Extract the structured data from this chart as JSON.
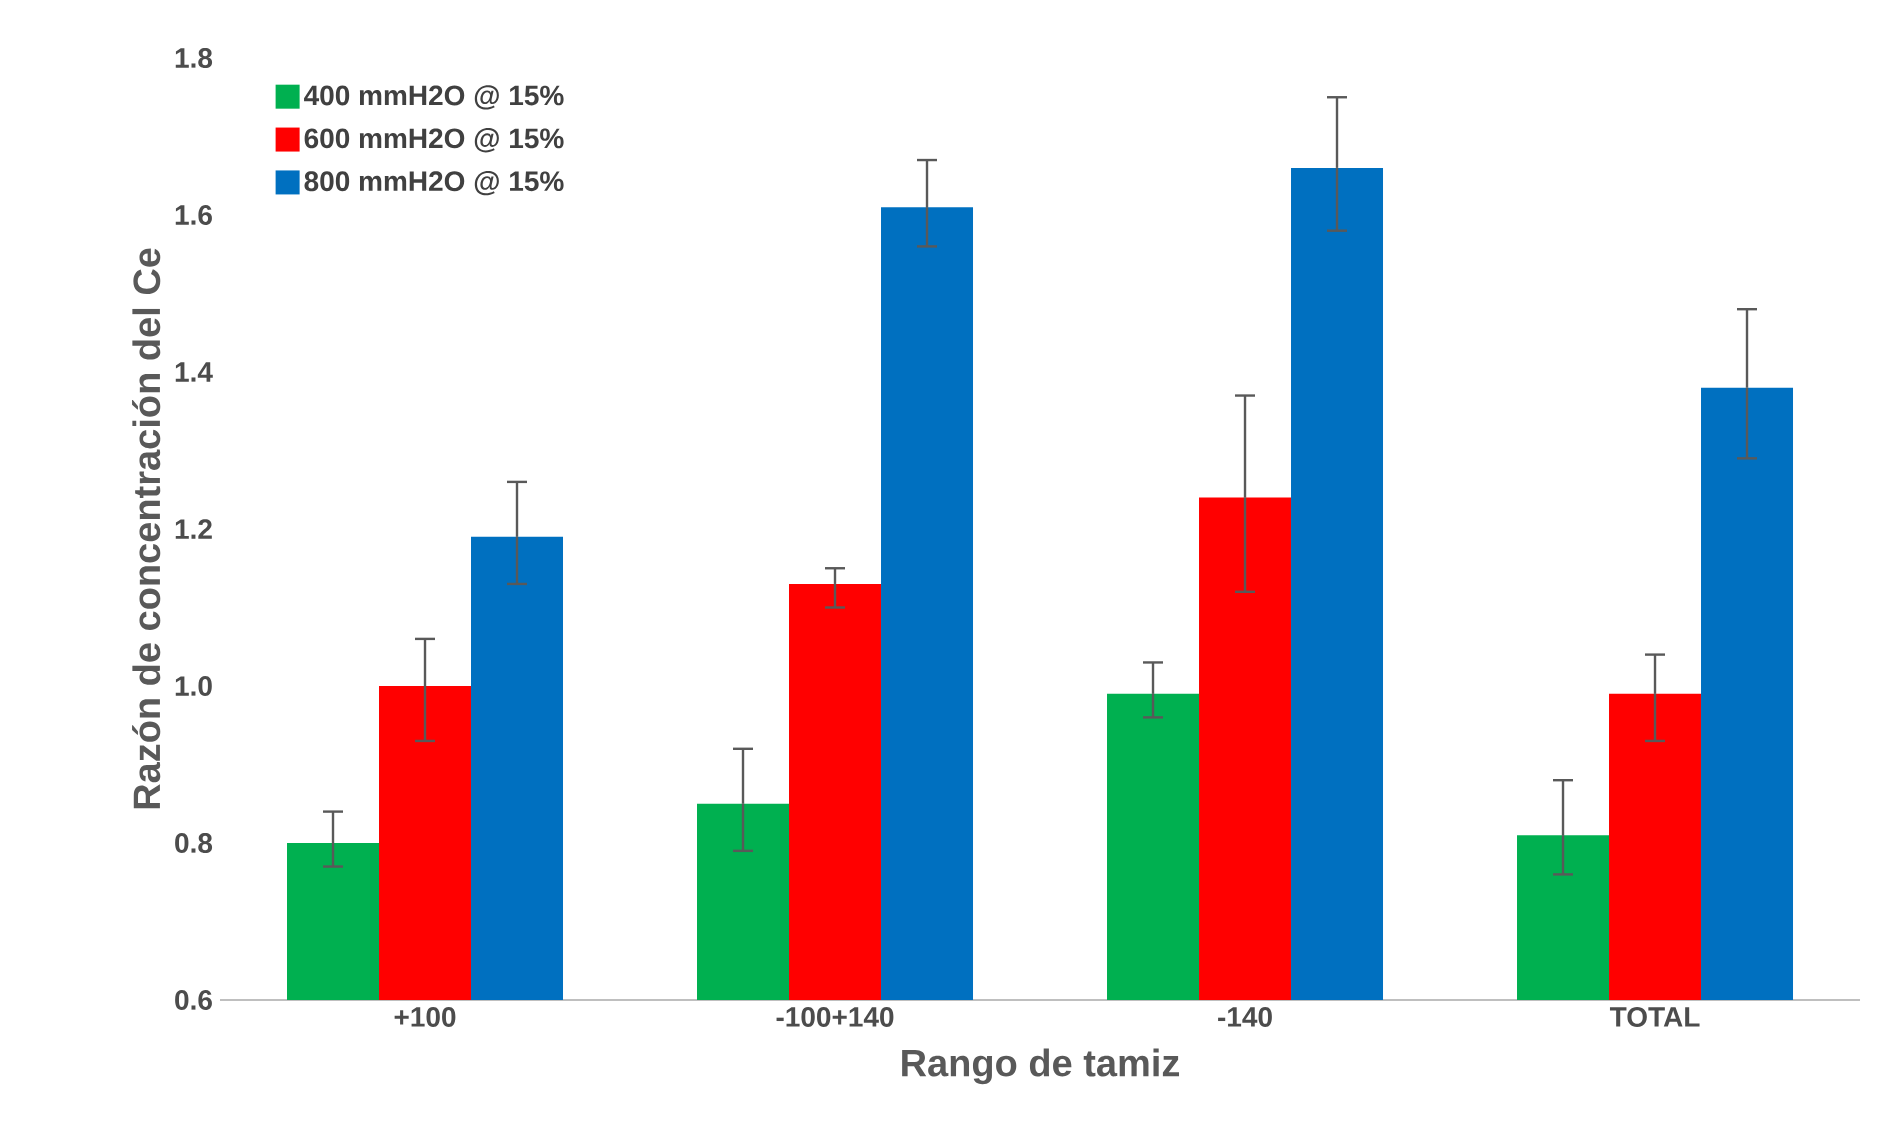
{
  "chart_data": {
    "type": "bar",
    "xlabel": "Rango de tamiz",
    "ylabel": "Razón de concentración del Ce",
    "categories": [
      "+100",
      "-100+140",
      "-140",
      "TOTAL"
    ],
    "series": [
      {
        "name": "400 mmH2O @ 15%",
        "color": "#00b050",
        "values": [
          0.8,
          0.85,
          0.99,
          0.81
        ],
        "errors": [
          [
            0.77,
            0.84
          ],
          [
            0.79,
            0.92
          ],
          [
            0.96,
            1.03
          ],
          [
            0.76,
            0.88
          ]
        ]
      },
      {
        "name": "600 mmH2O @ 15%",
        "color": "#ff0000",
        "values": [
          1.0,
          1.13,
          1.24,
          0.99
        ],
        "errors": [
          [
            0.93,
            1.06
          ],
          [
            1.1,
            1.15
          ],
          [
            1.12,
            1.37
          ],
          [
            0.93,
            1.04
          ]
        ]
      },
      {
        "name": "800 mmH2O @ 15%",
        "color": "#0070c0",
        "values": [
          1.19,
          1.61,
          1.66,
          1.38
        ],
        "errors": [
          [
            1.13,
            1.26
          ],
          [
            1.56,
            1.67
          ],
          [
            1.58,
            1.75
          ],
          [
            1.29,
            1.48
          ]
        ]
      }
    ],
    "ylim": [
      0.6,
      1.8
    ],
    "yticks": [
      0.6,
      0.8,
      {
        "value": 1,
        "label": "1.0"
      },
      1.2,
      1.4,
      1.6,
      1.8
    ],
    "legend": "top left"
  }
}
